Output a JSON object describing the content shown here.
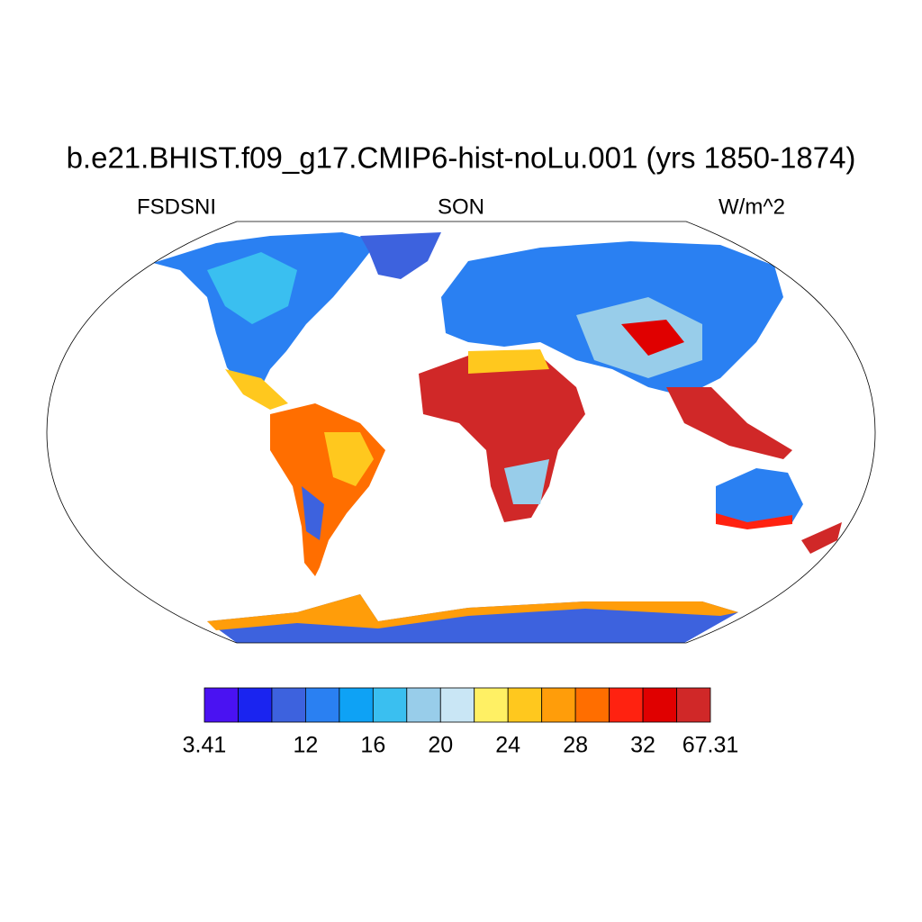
{
  "map": {
    "title": "b.e21.BHIST.f09_g17.CMIP6-hist-noLu.001 (yrs 1850-1874)",
    "left_label": "FSDSNI",
    "center_label": "SON",
    "right_label": "W/m^2",
    "colorbar": {
      "colors": [
        "#4a12f2",
        "#1a24f0",
        "#3d62de",
        "#2a80f2",
        "#0ea2f5",
        "#3abff0",
        "#98cdea",
        "#c9e6f5",
        "#fff064",
        "#ffc81e",
        "#ff9d0a",
        "#ff6e00",
        "#ff2210",
        "#e00000",
        "#d02828"
      ],
      "levels": [
        3.41,
        null,
        null,
        12,
        null,
        16,
        null,
        20,
        null,
        24,
        null,
        28,
        null,
        32,
        null,
        67.31
      ]
    }
  }
}
